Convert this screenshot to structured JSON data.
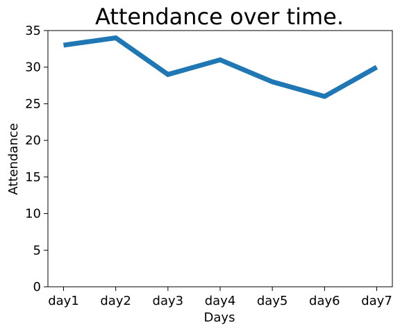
{
  "chart_data": {
    "type": "line",
    "title": "Attendance over time.",
    "xlabel": "Days",
    "ylabel": "Attendance",
    "categories": [
      "day1",
      "day2",
      "day3",
      "day4",
      "day5",
      "day6",
      "day7"
    ],
    "series": [
      {
        "values": [
          33,
          34,
          29,
          31,
          28,
          26,
          30
        ],
        "color": "#1f77b4"
      }
    ],
    "ylim": [
      0,
      35
    ],
    "yticks": [
      0,
      5,
      10,
      15,
      20,
      25,
      30,
      35
    ],
    "grid": false,
    "legend": false
  }
}
